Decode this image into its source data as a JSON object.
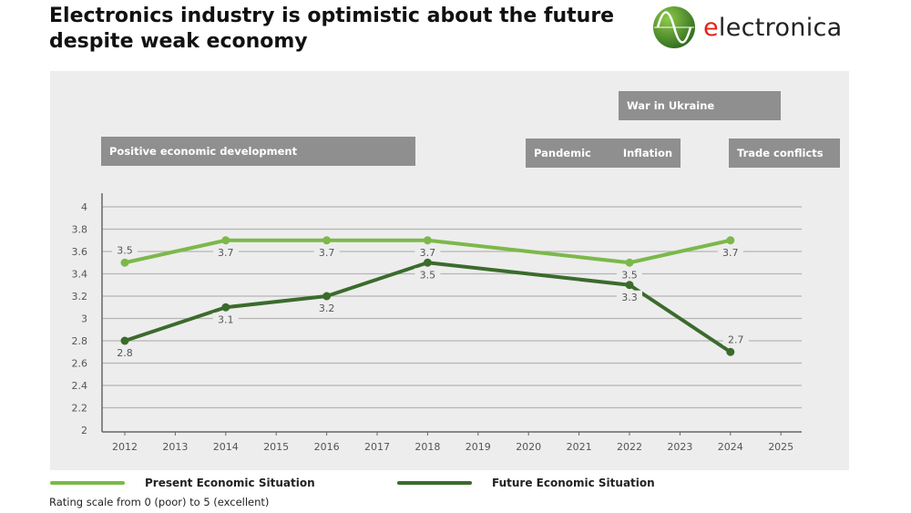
{
  "title": "Electronics industry is optimistic about the future despite weak economy",
  "logo": {
    "text_first": "e",
    "text_rest": "lectronica"
  },
  "colors": {
    "present": "#7cb84a",
    "future": "#3b6b2c",
    "event_box": "#8f8f8f",
    "panel": "#ededed"
  },
  "events": [
    "Positive economic development",
    "Pandemic",
    "Inflation",
    "War in Ukraine",
    "Trade conflicts"
  ],
  "note": "Rating scale from 0 (poor) to 5 (excellent)",
  "chart_data": {
    "type": "line",
    "x": [
      2012,
      2013,
      2014,
      2015,
      2016,
      2017,
      2018,
      2019,
      2020,
      2021,
      2022,
      2023,
      2024,
      2025
    ],
    "yticks": [
      "2",
      "2.2",
      "2.4",
      "2.6",
      "2.8",
      "3",
      "3.2",
      "3.4",
      "3.6",
      "3.8",
      "4"
    ],
    "ylim": [
      2,
      4
    ],
    "grid": true,
    "legend": "bottom",
    "series": [
      {
        "name": "Present Economic Situation",
        "points": [
          [
            2012,
            3.5
          ],
          [
            2014,
            3.7
          ],
          [
            2016,
            3.7
          ],
          [
            2018,
            3.7
          ],
          [
            2022,
            3.5
          ],
          [
            2024,
            3.7
          ]
        ]
      },
      {
        "name": "Future Economic Situation",
        "points": [
          [
            2012,
            2.8
          ],
          [
            2014,
            3.1
          ],
          [
            2016,
            3.2
          ],
          [
            2018,
            3.5
          ],
          [
            2022,
            3.3
          ],
          [
            2024,
            2.7
          ]
        ]
      }
    ]
  }
}
